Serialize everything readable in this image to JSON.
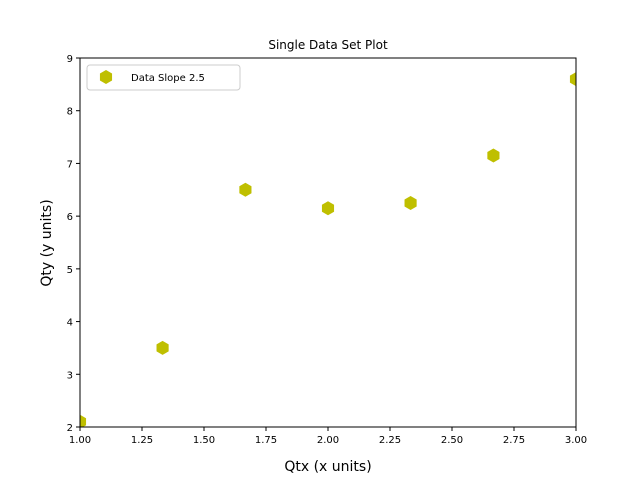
{
  "chart_data": {
    "type": "scatter",
    "title": "Single Data Set Plot",
    "xlabel": "Qtx (x units)",
    "ylabel": "Qty (y units)",
    "xlim": [
      1.0,
      3.0
    ],
    "ylim": [
      2,
      9
    ],
    "xticks": [
      "1.00",
      "1.25",
      "1.50",
      "1.75",
      "2.00",
      "2.25",
      "2.50",
      "2.75",
      "3.00"
    ],
    "yticks": [
      "2",
      "3",
      "4",
      "5",
      "6",
      "7",
      "8",
      "9"
    ],
    "grid": false,
    "legend_position": "top-left",
    "series": [
      {
        "name": "Data Slope 2.5",
        "color": "#bfbf00",
        "marker": "hexagon",
        "x": [
          1.0,
          1.333,
          1.667,
          2.0,
          2.333,
          2.667,
          3.0
        ],
        "y": [
          2.1,
          3.5,
          6.5,
          6.15,
          6.25,
          7.15,
          8.6
        ]
      }
    ]
  }
}
